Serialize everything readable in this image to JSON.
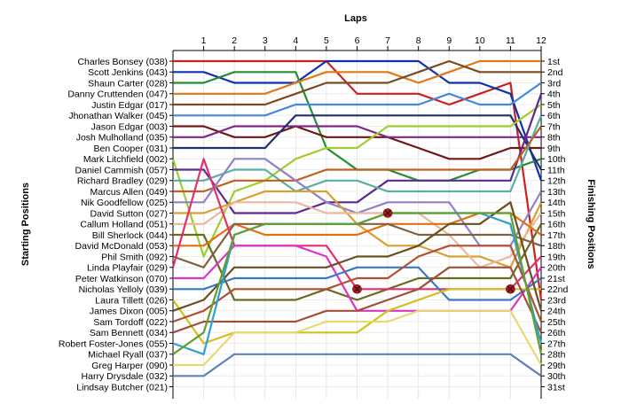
{
  "chart_data": {
    "type": "line",
    "title": "",
    "x_axis_title": "Laps",
    "y_left_title": "Starting Positions",
    "y_right_title": "Finishing Positions",
    "laps": [
      1,
      2,
      3,
      4,
      5,
      6,
      7,
      8,
      9,
      10,
      11,
      12
    ],
    "y_inverted": true,
    "grid": true,
    "starting_labels": [
      "Charles Bonsey (038)",
      "Scott Jenkins (043)",
      "Shaun Carter (028)",
      "Danny Cruttenden (047)",
      "Justin Edgar (017)",
      "Jhonathan Walker (045)",
      "Jason Edgar (003)",
      "Josh Mulholland (035)",
      "Ben Cooper (031)",
      "Mark Litchfield (002)",
      "Daniel Cammish (057)",
      "Richard Bradley (029)",
      "Marcus Allen (049)",
      "Nik Goodfellow (025)",
      "David Sutton (027)",
      "Callum Holland (051)",
      "Bill Sherlock (044)",
      "David McDonald (053)",
      "Phil Smith (092)",
      "Linda Playfair (029)",
      "Peter Watkinson (070)",
      "Nicholas Yelloly (039)",
      "Laura Tillett (026)",
      "James Dixon (005)",
      "Sam Tordoff (022)",
      "Sam Bennett (034)",
      "Robert Foster-Jones (055)",
      "Michael Ryall (037)",
      "Greg Harper (090)",
      "Harry Drysdale (032)",
      "Lindsay Butcher (021)"
    ],
    "finishing_labels": [
      "1st",
      "2nd",
      "3rd",
      "4th",
      "5th",
      "6th",
      "7th",
      "8th",
      "9th",
      "10th",
      "11th",
      "12th",
      "13th",
      "14th",
      "15th",
      "16th",
      "17th",
      "18th",
      "19th",
      "20th",
      "21st",
      "22nd",
      "23rd",
      "24th",
      "25th",
      "26th",
      "27th",
      "28th",
      "29th",
      "30th",
      "31st"
    ],
    "series": [
      {
        "color": "#cc2020",
        "positions": [
          1,
          1,
          1,
          1,
          1,
          4,
          4,
          4,
          5,
          4,
          3,
          23
        ]
      },
      {
        "color": "#1030b0",
        "positions": [
          2,
          3,
          3,
          3,
          1,
          1,
          1,
          1,
          3,
          3,
          4,
          12
        ]
      },
      {
        "color": "#209030",
        "positions": [
          3,
          2,
          2,
          2,
          9,
          11,
          11,
          12,
          12,
          11,
          11,
          10
        ]
      },
      {
        "color": "#e07818",
        "positions": [
          4,
          4,
          4,
          3,
          2,
          2,
          2,
          3,
          2,
          1,
          1,
          1
        ]
      },
      {
        "color": "#7a4a20",
        "positions": [
          5,
          5,
          5,
          4,
          3,
          3,
          3,
          2,
          1,
          2,
          2,
          2
        ]
      },
      {
        "color": "#4488dd",
        "positions": [
          6,
          6,
          6,
          5,
          5,
          5,
          5,
          5,
          4,
          5,
          5,
          3
        ]
      },
      {
        "color": "#701818",
        "positions": [
          7,
          8,
          8,
          7,
          8,
          8,
          8,
          9,
          10,
          10,
          9,
          9
        ]
      },
      {
        "color": "#802888",
        "positions": [
          8,
          7,
          7,
          7,
          7,
          7,
          8,
          8,
          8,
          8,
          8,
          8
        ]
      },
      {
        "color": "#20306a",
        "positions": [
          9,
          9,
          9,
          6,
          6,
          6,
          6,
          6,
          6,
          6,
          6,
          11
        ]
      },
      {
        "color": "#a0cc30",
        "positions": [
          19,
          13,
          12,
          10,
          9,
          9,
          7,
          7,
          7,
          7,
          7,
          5
        ]
      },
      {
        "color": "#602890",
        "positions": [
          11,
          15,
          15,
          15,
          14,
          14,
          12,
          12,
          12,
          12,
          12,
          4
        ]
      },
      {
        "color": "#58b0a0",
        "positions": [
          12,
          11,
          11,
          13,
          12,
          12,
          13,
          13,
          13,
          13,
          13,
          6
        ]
      },
      {
        "color": "#c06020",
        "positions": [
          13,
          12,
          12,
          12,
          11,
          11,
          11,
          11,
          11,
          11,
          11,
          7
        ]
      },
      {
        "color": "#9080c8",
        "positions": [
          14,
          10,
          10,
          12,
          14,
          15,
          14,
          14,
          14,
          18,
          18,
          13
        ]
      },
      {
        "color": "#d8a030",
        "positions": [
          15,
          14,
          13,
          13,
          13,
          16,
          18,
          18,
          19,
          19,
          20,
          14
        ]
      },
      {
        "color": "#e8b8a0",
        "positions": [
          16,
          14,
          14,
          14,
          15,
          15,
          15,
          15,
          17,
          20,
          19,
          15
        ]
      },
      {
        "color": "#6a6a20",
        "positions": [
          17,
          23,
          23,
          23,
          22,
          23,
          22,
          21,
          21,
          21,
          21,
          16
        ]
      },
      {
        "color": "#e07010",
        "positions": [
          18,
          16,
          17,
          17,
          17,
          17,
          16,
          16,
          16,
          15,
          15,
          17
        ]
      },
      {
        "color": "#806040",
        "positions": [
          20,
          16,
          16,
          16,
          16,
          16,
          16,
          17,
          17,
          17,
          17,
          18
        ]
      },
      {
        "color": "#e03070",
        "positions": [
          10,
          18,
          18,
          18,
          18,
          22,
          22,
          22,
          22,
          22,
          22,
          19
        ]
      },
      {
        "color": "#dd33cc",
        "positions": [
          21,
          18,
          18,
          18,
          19,
          24,
          24,
          24,
          24,
          24,
          24,
          20
        ]
      },
      {
        "color": "#3878c8",
        "positions": [
          22,
          21,
          21,
          21,
          21,
          20,
          20,
          20,
          23,
          23,
          23,
          21
        ]
      },
      {
        "color": "#d0c020",
        "positions": [
          27,
          26,
          26,
          26,
          26,
          26,
          24,
          23,
          22,
          22,
          22,
          22
        ]
      },
      {
        "color": "#685020",
        "positions": [
          23,
          20,
          20,
          20,
          20,
          19,
          19,
          18,
          16,
          16,
          14,
          24
        ]
      },
      {
        "color": "#b05030",
        "positions": [
          24,
          22,
          22,
          22,
          22,
          21,
          21,
          19,
          18,
          18,
          18,
          25
        ]
      },
      {
        "color": "#a05038",
        "positions": [
          25,
          25,
          25,
          25,
          24,
          24,
          23,
          22,
          20,
          20,
          20,
          26
        ]
      },
      {
        "color": "#30a0d0",
        "positions": [
          28,
          17,
          16,
          16,
          16,
          16,
          15,
          15,
          15,
          15,
          16,
          27
        ]
      },
      {
        "color": "#60a030",
        "positions": [
          26,
          17,
          16,
          16,
          16,
          16,
          15,
          15,
          15,
          15,
          15,
          28
        ]
      },
      {
        "color": "#e8d870",
        "positions": [
          29,
          26,
          26,
          26,
          25,
          25,
          25,
          24,
          24,
          24,
          24,
          29
        ]
      },
      {
        "color": "#6080c0",
        "positions": [
          30,
          28,
          28,
          28,
          28,
          28,
          28,
          28,
          28,
          28,
          28,
          30
        ]
      }
    ],
    "crash_markers": [
      {
        "lap": 7,
        "position": 15
      },
      {
        "lap": 6,
        "position": 22
      },
      {
        "lap": 11,
        "position": 22
      }
    ]
  },
  "icons": {
    "crash_marker": "red-cross-icon"
  }
}
